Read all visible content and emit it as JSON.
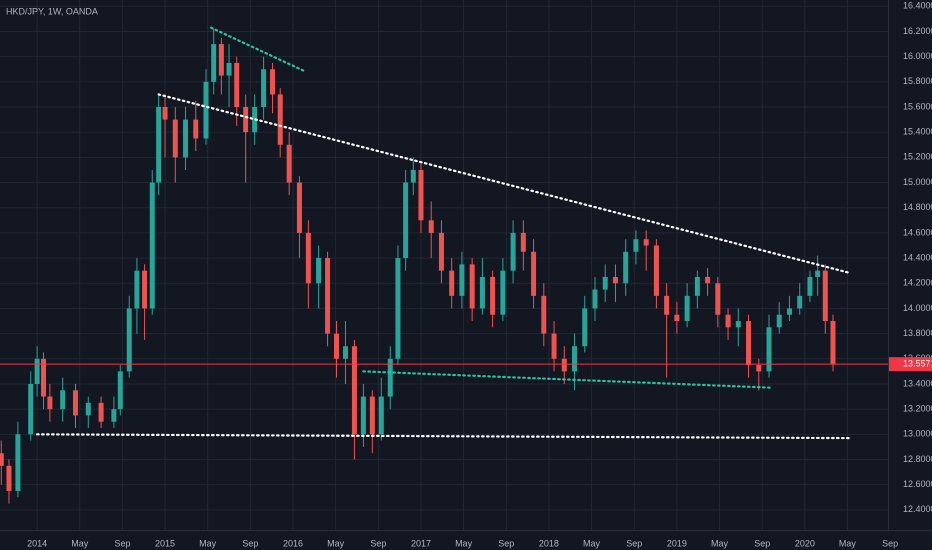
{
  "chart_data": {
    "type": "candlestick",
    "title": "HKD/JPY, 1W, OANDA",
    "up_color": "#26a69a",
    "down_color": "#ef5350",
    "grid": true,
    "xlim": [
      2013.71,
      2020.65
    ],
    "ylim": [
      12.24,
      16.45
    ],
    "last_price": 13.55712,
    "last_price_color": "#f23645",
    "x": [
      2013.72,
      2013.78,
      2013.85,
      2013.95,
      2014.0,
      2014.05,
      2014.1,
      2014.2,
      2014.3,
      2014.4,
      2014.5,
      2014.6,
      2014.65,
      2014.72,
      2014.78,
      2014.84,
      2014.9,
      2014.95,
      2015.0,
      2015.08,
      2015.16,
      2015.24,
      2015.32,
      2015.38,
      2015.44,
      2015.5,
      2015.56,
      2015.63,
      2015.7,
      2015.77,
      2015.84,
      2015.9,
      2015.97,
      2016.05,
      2016.12,
      2016.2,
      2016.27,
      2016.34,
      2016.41,
      2016.48,
      2016.55,
      2016.62,
      2016.69,
      2016.76,
      2016.82,
      2016.88,
      2016.94,
      2017.0,
      2017.08,
      2017.16,
      2017.24,
      2017.32,
      2017.4,
      2017.48,
      2017.56,
      2017.64,
      2017.72,
      2017.8,
      2017.88,
      2017.96,
      2018.04,
      2018.12,
      2018.2,
      2018.28,
      2018.36,
      2018.44,
      2018.52,
      2018.6,
      2018.68,
      2018.76,
      2018.84,
      2018.92,
      2019.0,
      2019.08,
      2019.16,
      2019.24,
      2019.32,
      2019.4,
      2019.48,
      2019.56,
      2019.64,
      2019.72,
      2019.8,
      2019.88,
      2019.96,
      2020.04,
      2020.1,
      2020.16,
      2020.22
    ],
    "open": [
      12.85,
      12.75,
      12.55,
      13.0,
      13.4,
      13.6,
      13.3,
      13.2,
      13.35,
      13.15,
      13.25,
      13.1,
      13.2,
      13.5,
      14.0,
      14.3,
      14.0,
      15.0,
      15.6,
      15.5,
      15.2,
      15.5,
      15.35,
      15.8,
      16.1,
      15.85,
      15.95,
      15.6,
      15.4,
      15.6,
      15.9,
      15.7,
      15.3,
      15.0,
      14.6,
      14.2,
      14.4,
      13.8,
      13.6,
      13.7,
      13.0,
      13.3,
      13.0,
      13.3,
      13.6,
      14.4,
      15.0,
      15.1,
      14.7,
      14.6,
      14.3,
      14.1,
      14.35,
      14.0,
      14.25,
      13.95,
      14.3,
      14.6,
      14.45,
      14.1,
      13.8,
      13.6,
      13.5,
      13.7,
      14.0,
      14.15,
      14.25,
      14.2,
      14.45,
      14.55,
      14.5,
      14.1,
      13.95,
      13.9,
      14.1,
      14.25,
      14.2,
      13.95,
      13.85,
      13.9,
      13.55,
      13.5,
      13.85,
      13.95,
      14.0,
      14.1,
      14.25,
      14.3,
      13.9
    ],
    "high": [
      12.95,
      12.8,
      13.1,
      13.5,
      13.7,
      13.65,
      13.4,
      13.45,
      13.4,
      13.3,
      13.3,
      13.3,
      13.55,
      14.1,
      14.4,
      14.35,
      15.1,
      15.7,
      15.7,
      15.6,
      15.6,
      15.65,
      15.9,
      16.22,
      16.15,
      16.1,
      16.0,
      15.7,
      15.7,
      16.0,
      15.95,
      15.75,
      15.4,
      15.05,
      14.7,
      14.5,
      14.45,
      13.9,
      13.9,
      13.75,
      13.4,
      13.35,
      13.45,
      13.7,
      14.5,
      15.1,
      15.2,
      15.15,
      14.85,
      14.7,
      14.4,
      14.45,
      14.4,
      14.4,
      14.3,
      14.4,
      14.7,
      14.7,
      14.55,
      14.2,
      13.9,
      13.7,
      13.8,
      14.1,
      14.25,
      14.35,
      14.35,
      14.55,
      14.62,
      14.62,
      14.55,
      14.2,
      14.05,
      14.2,
      14.3,
      14.32,
      14.25,
      14.0,
      14.0,
      13.95,
      13.6,
      13.95,
      14.05,
      14.1,
      14.2,
      14.3,
      14.42,
      14.35,
      13.95
    ],
    "low": [
      12.6,
      12.45,
      12.5,
      12.95,
      13.3,
      13.2,
      13.1,
      13.1,
      13.05,
      13.05,
      13.05,
      13.05,
      13.15,
      13.45,
      13.8,
      13.75,
      13.95,
      14.9,
      15.2,
      15.0,
      15.1,
      15.25,
      15.3,
      15.7,
      15.7,
      15.6,
      15.45,
      15.0,
      15.3,
      15.5,
      15.55,
      15.2,
      14.9,
      14.4,
      14.0,
      14.0,
      13.7,
      13.45,
      13.4,
      12.8,
      12.9,
      12.85,
      12.95,
      13.2,
      13.55,
      14.3,
      14.9,
      14.6,
      14.4,
      14.2,
      14.0,
      14.0,
      13.9,
      13.95,
      13.85,
      13.9,
      14.2,
      14.3,
      14.0,
      13.7,
      13.5,
      13.4,
      13.35,
      13.65,
      13.9,
      14.05,
      14.05,
      14.1,
      14.35,
      14.3,
      14.0,
      13.45,
      13.8,
      13.85,
      14.0,
      14.1,
      13.85,
      13.75,
      13.7,
      13.45,
      13.35,
      13.45,
      13.8,
      13.9,
      13.95,
      14.05,
      14.1,
      13.8,
      13.5
    ],
    "close": [
      12.75,
      12.55,
      13.0,
      13.4,
      13.6,
      13.3,
      13.2,
      13.35,
      13.15,
      13.25,
      13.1,
      13.2,
      13.5,
      14.0,
      14.3,
      14.0,
      15.0,
      15.6,
      15.5,
      15.2,
      15.5,
      15.35,
      15.8,
      16.1,
      15.85,
      15.95,
      15.6,
      15.4,
      15.6,
      15.9,
      15.7,
      15.3,
      15.0,
      14.6,
      14.2,
      14.4,
      13.8,
      13.6,
      13.7,
      13.0,
      13.3,
      13.0,
      13.3,
      13.6,
      14.4,
      15.0,
      15.1,
      14.7,
      14.6,
      14.3,
      14.1,
      14.35,
      14.0,
      14.25,
      13.95,
      14.3,
      14.6,
      14.45,
      14.1,
      13.8,
      13.6,
      13.5,
      13.7,
      14.0,
      14.15,
      14.25,
      14.2,
      14.45,
      14.55,
      14.5,
      14.1,
      13.95,
      13.9,
      14.1,
      14.25,
      14.2,
      13.95,
      13.85,
      13.9,
      13.55,
      13.5,
      13.85,
      13.95,
      14.0,
      14.1,
      14.25,
      14.3,
      13.9,
      13.55712
    ],
    "trendlines": [
      {
        "color": "#ffffff",
        "x": [
          2014.95,
          2020.36
        ],
        "y": [
          15.7,
          14.28
        ]
      },
      {
        "color": "#ffffff",
        "x": [
          2014.0,
          2020.36
        ],
        "y": [
          13.0,
          12.97
        ]
      },
      {
        "color": "#26c6a0",
        "x": [
          2015.36,
          2016.1
        ],
        "y": [
          16.23,
          15.88
        ]
      },
      {
        "color": "#26c6a0",
        "x": [
          2016.55,
          2019.75
        ],
        "y": [
          13.5,
          13.37
        ]
      }
    ],
    "xticks": [
      {
        "value": 2014,
        "label": "2014"
      },
      {
        "value": 2014.333,
        "label": "May"
      },
      {
        "value": 2014.667,
        "label": "Sep"
      },
      {
        "value": 2015,
        "label": "2015"
      },
      {
        "value": 2015.333,
        "label": "May"
      },
      {
        "value": 2015.667,
        "label": "Sep"
      },
      {
        "value": 2016,
        "label": "2016"
      },
      {
        "value": 2016.333,
        "label": "May"
      },
      {
        "value": 2016.667,
        "label": "Sep"
      },
      {
        "value": 2017,
        "label": "2017"
      },
      {
        "value": 2017.333,
        "label": "May"
      },
      {
        "value": 2017.667,
        "label": "Sep"
      },
      {
        "value": 2018,
        "label": "2018"
      },
      {
        "value": 2018.333,
        "label": "May"
      },
      {
        "value": 2018.667,
        "label": "Sep"
      },
      {
        "value": 2019,
        "label": "2019"
      },
      {
        "value": 2019.333,
        "label": "May"
      },
      {
        "value": 2019.667,
        "label": "Sep"
      },
      {
        "value": 2020,
        "label": "2020"
      },
      {
        "value": 2020.333,
        "label": "May"
      },
      {
        "value": 2020.667,
        "label": "Sep"
      }
    ],
    "yticks": [
      {
        "value": 12.4,
        "label": "12.40000"
      },
      {
        "value": 12.6,
        "label": "12.60000"
      },
      {
        "value": 12.8,
        "label": "12.80000"
      },
      {
        "value": 13.0,
        "label": "13.00000"
      },
      {
        "value": 13.2,
        "label": "13.20000"
      },
      {
        "value": 13.4,
        "label": "13.40000"
      },
      {
        "value": 13.6,
        "label": "13.60000"
      },
      {
        "value": 13.8,
        "label": "13.80000"
      },
      {
        "value": 14.0,
        "label": "14.00000"
      },
      {
        "value": 14.2,
        "label": "14.20000"
      },
      {
        "value": 14.4,
        "label": "14.40000"
      },
      {
        "value": 14.6,
        "label": "14.60000"
      },
      {
        "value": 14.8,
        "label": "14.80000"
      },
      {
        "value": 15.0,
        "label": "15.00000"
      },
      {
        "value": 15.2,
        "label": "15.20000"
      },
      {
        "value": 15.4,
        "label": "15.40000"
      },
      {
        "value": 15.6,
        "label": "15.60000"
      },
      {
        "value": 15.8,
        "label": "15.80000"
      },
      {
        "value": 16.0,
        "label": "16.00000"
      },
      {
        "value": 16.2,
        "label": "16.20000"
      },
      {
        "value": 16.4,
        "label": "16.40000"
      }
    ]
  }
}
